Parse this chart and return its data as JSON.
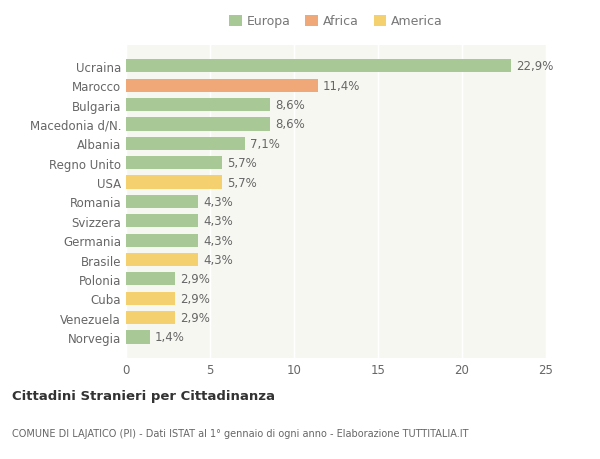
{
  "categories": [
    "Norvegia",
    "Venezuela",
    "Cuba",
    "Polonia",
    "Brasile",
    "Germania",
    "Svizzera",
    "Romania",
    "USA",
    "Regno Unito",
    "Albania",
    "Macedonia d/N.",
    "Bulgaria",
    "Marocco",
    "Ucraina"
  ],
  "values": [
    1.4,
    2.9,
    2.9,
    2.9,
    4.3,
    4.3,
    4.3,
    4.3,
    5.7,
    5.7,
    7.1,
    8.6,
    8.6,
    11.4,
    22.9
  ],
  "colors": [
    "#a8c896",
    "#f5d06e",
    "#f5d06e",
    "#a8c896",
    "#f5d06e",
    "#a8c896",
    "#a8c896",
    "#a8c896",
    "#f5d06e",
    "#a8c896",
    "#a8c896",
    "#a8c896",
    "#a8c896",
    "#f0a878",
    "#a8c896"
  ],
  "labels": [
    "1,4%",
    "2,9%",
    "2,9%",
    "2,9%",
    "4,3%",
    "4,3%",
    "4,3%",
    "4,3%",
    "5,7%",
    "5,7%",
    "7,1%",
    "8,6%",
    "8,6%",
    "11,4%",
    "22,9%"
  ],
  "legend": [
    {
      "label": "Europa",
      "color": "#a8c896"
    },
    {
      "label": "Africa",
      "color": "#f0a878"
    },
    {
      "label": "America",
      "color": "#f5d06e"
    }
  ],
  "title": "Cittadini Stranieri per Cittadinanza",
  "subtitle": "COMUNE DI LAJATICO (PI) - Dati ISTAT al 1° gennaio di ogni anno - Elaborazione TUTTITALIA.IT",
  "xlim": [
    0,
    25
  ],
  "xticks": [
    0,
    5,
    10,
    15,
    20,
    25
  ],
  "background_color": "#ffffff",
  "bar_background": "#f7f7f2",
  "grid_color": "#ffffff",
  "label_fontsize": 8.5,
  "tick_fontsize": 8.5,
  "bar_height": 0.68
}
